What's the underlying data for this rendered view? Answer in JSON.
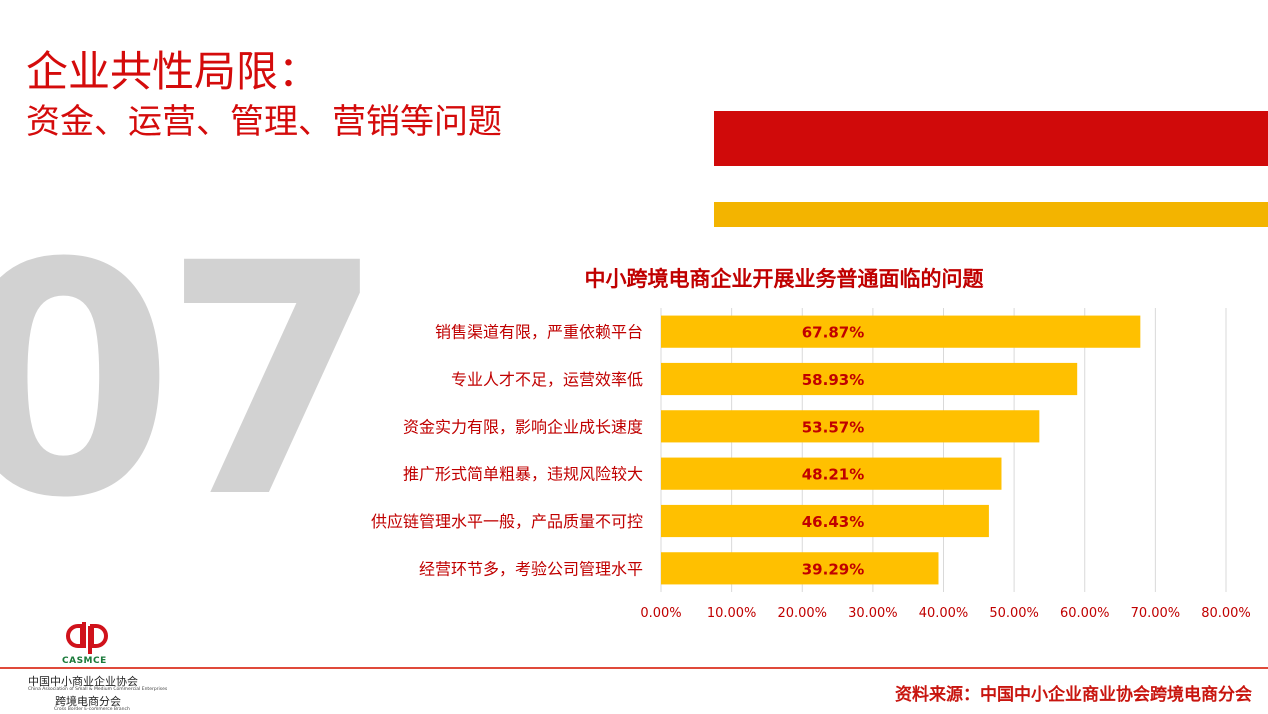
{
  "slide": {
    "title_line1": "企业共性局限：",
    "title_line2": "资金、运营、管理、营销等问题",
    "section_number": "07",
    "colors": {
      "accent_red": "#d00a0a",
      "accent_yellow": "#f3b400",
      "bar": "#ffc000",
      "label_red": "#c00000"
    }
  },
  "chart_data": {
    "type": "bar",
    "orientation": "horizontal",
    "title": "中小跨境电商企业开展业务普通面临的问题",
    "categories": [
      "销售渠道有限，严重依赖平台",
      "专业人才不足，运营效率低",
      "资金实力有限，影响企业成长速度",
      "推广形式简单粗暴，违规风险较大",
      "供应链管理水平一般，产品质量不可控",
      "经营环节多，考验公司管理水平"
    ],
    "values": [
      67.87,
      58.93,
      53.57,
      48.21,
      46.43,
      39.29
    ],
    "value_labels": [
      "67.87%",
      "58.93%",
      "53.57%",
      "48.21%",
      "46.43%",
      "39.29%"
    ],
    "xlim": [
      0,
      80
    ],
    "xticks": [
      0,
      10,
      20,
      30,
      40,
      50,
      60,
      70,
      80
    ],
    "xtick_labels": [
      "0.00%",
      "10.00%",
      "20.00%",
      "30.00%",
      "40.00%",
      "50.00%",
      "60.00%",
      "70.00%",
      "80.00%"
    ],
    "grid": true
  },
  "footer": {
    "logo_text": "CASMCE",
    "org_name_cn": "中国中小商业企业协会",
    "org_name_en": "China Association of Small & Medium Commercial Enterprises",
    "branch_name_cn": "跨境电商分会",
    "branch_name_en": "Cross Border E-commerce Branch",
    "source": "资料来源：中国中小企业商业协会跨境电商分会"
  }
}
